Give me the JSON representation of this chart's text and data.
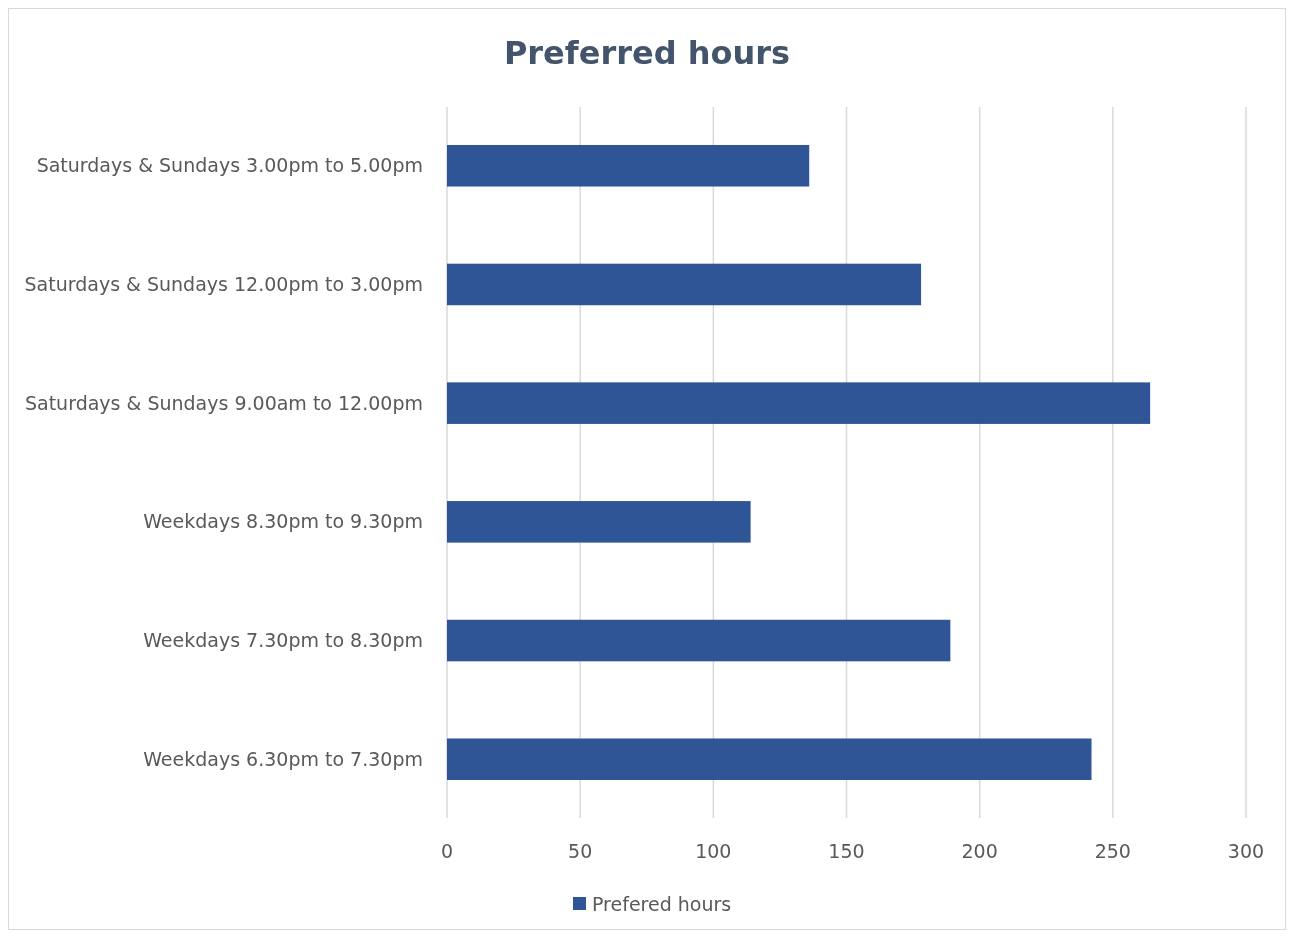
{
  "chart_data": {
    "type": "bar",
    "orientation": "horizontal",
    "title": "Preferred hours",
    "categories": [
      "Saturdays & Sundays 3.00pm to 5.00pm",
      "Saturdays & Sundays 12.00pm to 3.00pm",
      "Saturdays & Sundays 9.00am to 12.00pm",
      "Weekdays 8.30pm to 9.30pm",
      "Weekdays 7.30pm to 8.30pm",
      "Weekdays 6.30pm to 7.30pm"
    ],
    "series": [
      {
        "name": "Prefered hours",
        "color": "#2f5597",
        "values": [
          136,
          178,
          264,
          114,
          189,
          242
        ]
      }
    ],
    "xlim": [
      0,
      300
    ],
    "xticks": [
      0,
      50,
      100,
      150,
      200,
      250,
      300
    ],
    "grid": "x",
    "legend": "bottom"
  }
}
